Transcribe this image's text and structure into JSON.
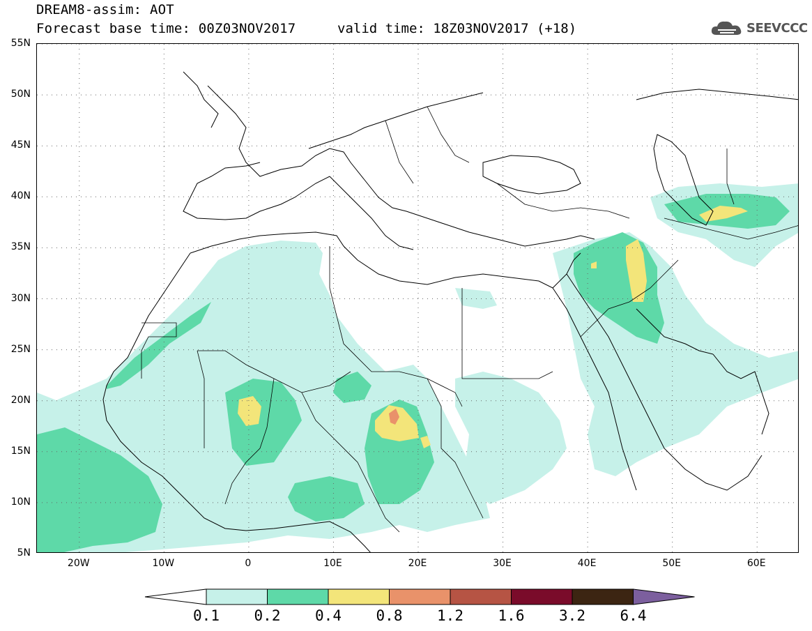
{
  "header": {
    "title": "DREAM8-assim: AOT",
    "base_time": "Forecast base time: 00Z03NOV2017",
    "valid_time": "valid time: 18Z03NOV2017 (+18)",
    "logo_text": "SEEVCCC",
    "logo_icon": "cloud-icon"
  },
  "map": {
    "lat_labels": [
      {
        "label": "55N",
        "lat": 55
      },
      {
        "label": "50N",
        "lat": 50
      },
      {
        "label": "45N",
        "lat": 45
      },
      {
        "label": "40N",
        "lat": 40
      },
      {
        "label": "35N",
        "lat": 35
      },
      {
        "label": "30N",
        "lat": 30
      },
      {
        "label": "25N",
        "lat": 25
      },
      {
        "label": "20N",
        "lat": 20
      },
      {
        "label": "15N",
        "lat": 15
      },
      {
        "label": "10N",
        "lat": 10
      },
      {
        "label": "5N",
        "lat": 5
      }
    ],
    "lon_labels": [
      {
        "label": "20W",
        "lon": -20
      },
      {
        "label": "10W",
        "lon": -10
      },
      {
        "label": "0",
        "lon": 0
      },
      {
        "label": "10E",
        "lon": 10
      },
      {
        "label": "20E",
        "lon": 20
      },
      {
        "label": "30E",
        "lon": 30
      },
      {
        "label": "40E",
        "lon": 40
      },
      {
        "label": "50E",
        "lon": 50
      },
      {
        "label": "60E",
        "lon": 60
      }
    ],
    "extent": {
      "lon_min": -25,
      "lon_max": 65,
      "lat_min": 5,
      "lat_max": 55
    },
    "gridlines": "dotted"
  },
  "colorbar": {
    "levels": [
      "0.1",
      "0.2",
      "0.4",
      "0.8",
      "1.2",
      "1.6",
      "3.2",
      "6.4"
    ],
    "colors": [
      "#ffffff",
      "#c6f1e9",
      "#5ed9a8",
      "#f3e57a",
      "#e9926a",
      "#b65444",
      "#7a0b2a",
      "#3c2512",
      "#7c5f9e"
    ]
  }
}
